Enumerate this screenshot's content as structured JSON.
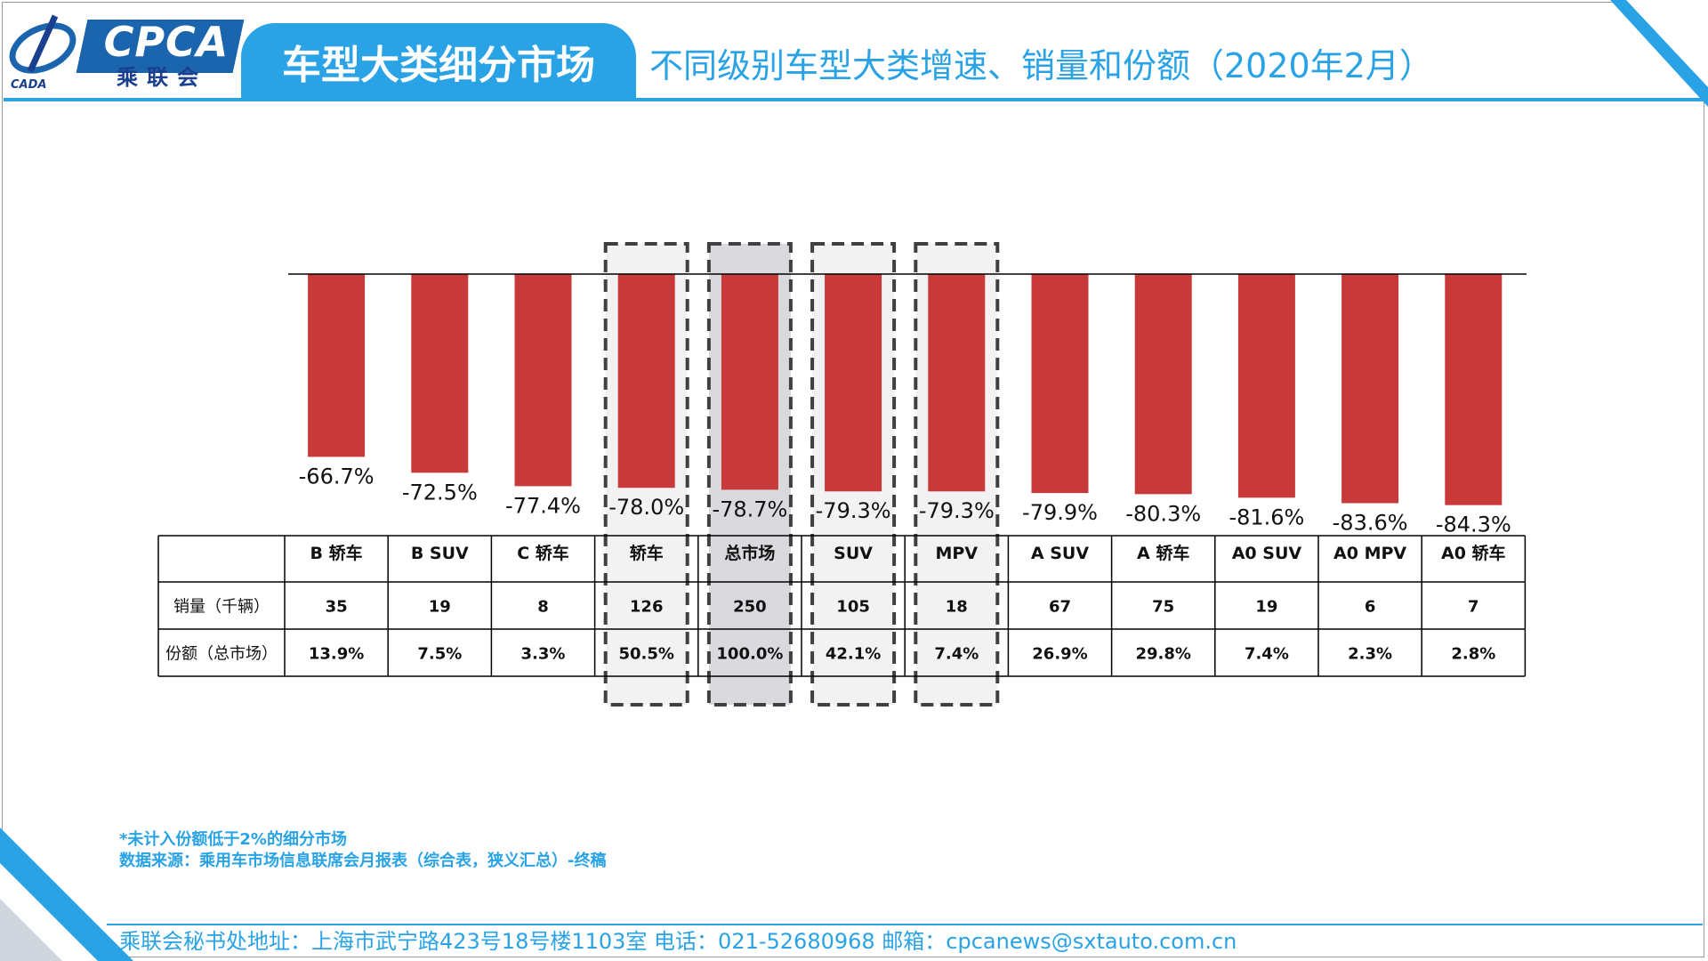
{
  "header": {
    "logo_text": "CPCA",
    "logo_cn": "乘联会",
    "logo_sub": "CADA",
    "tab_title": "车型大类细分市场",
    "subtitle": "不同级别车型大类增速、销量和份额（2020年2月）"
  },
  "colors": {
    "accent": "#29a3e6",
    "bar": "#c83a3a",
    "highlight_bg": "#f2f2f2",
    "highlight_dark_bg": "#d9d9de",
    "dash": "#404040"
  },
  "chart_data": {
    "type": "bar",
    "categories": [
      "B 轿车",
      "B SUV",
      "C 轿车",
      "轿车",
      "总市场",
      "SUV",
      "MPV",
      "A SUV",
      "A 轿车",
      "A0 SUV",
      "A0 MPV",
      "A0 轿车"
    ],
    "values": [
      -66.7,
      -72.5,
      -77.4,
      -78.0,
      -78.7,
      -79.3,
      -79.3,
      -79.9,
      -80.3,
      -81.6,
      -83.6,
      -84.3
    ],
    "value_labels": [
      "-66.7%",
      "-72.5%",
      "-77.4%",
      "-78.0%",
      "-78.7%",
      "-79.3%",
      "-79.3%",
      "-79.9%",
      "-80.3%",
      "-81.6%",
      "-83.6%",
      "-84.3%"
    ],
    "ylim": [
      -100,
      0
    ],
    "grid": false,
    "highlighted": [
      "轿车",
      "总市场",
      "SUV",
      "MPV"
    ],
    "highlighted_dark": [
      "总市场"
    ],
    "table": {
      "rows": [
        {
          "label": "销量（千辆）",
          "values": [
            "35",
            "19",
            "8",
            "126",
            "250",
            "105",
            "18",
            "67",
            "75",
            "19",
            "6",
            "7"
          ]
        },
        {
          "label": "份额（总市场）",
          "values": [
            "13.9%",
            "7.5%",
            "3.3%",
            "50.5%",
            "100.0%",
            "42.1%",
            "7.4%",
            "26.9%",
            "29.8%",
            "7.4%",
            "2.3%",
            "2.8%"
          ]
        }
      ]
    }
  },
  "notes": {
    "line1": "*未计入份额低于2%的细分市场",
    "line2": "数据来源：乘用车市场信息联席会月报表（综合表，狭义汇总）-终稿"
  },
  "footer": {
    "text": "乘联会秘书处地址：上海市武宁路423号18号楼1103室  电话：021-52680968   邮箱：cpcanews@sxtauto.com.cn"
  }
}
